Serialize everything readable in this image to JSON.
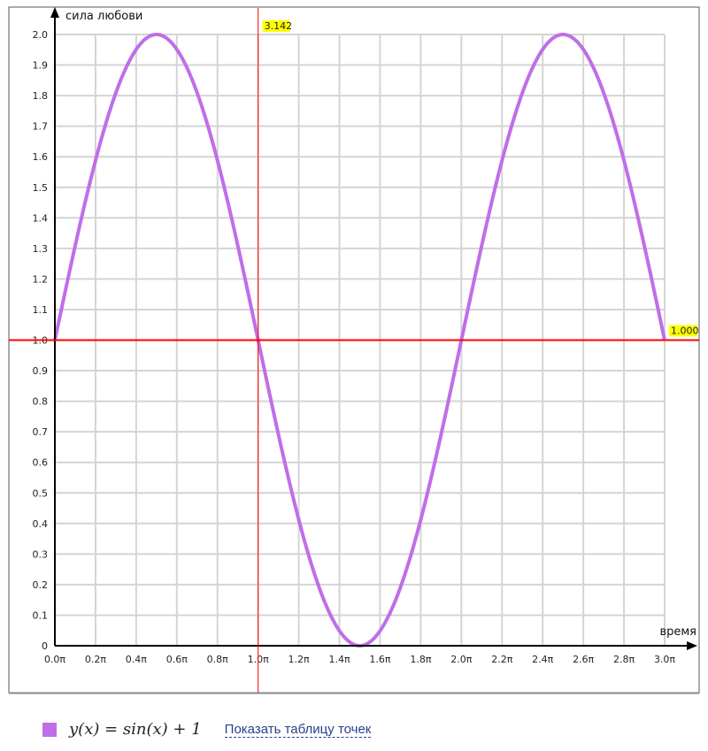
{
  "chart_data": {
    "type": "line",
    "xlabel": "время",
    "ylabel": "сила любови",
    "xlim_pi": [
      0,
      3
    ],
    "ylim": [
      0,
      2
    ],
    "grid": true,
    "x_ticks": [
      "0.0π",
      "0.2π",
      "0.4π",
      "0.6π",
      "0.8π",
      "1.0π",
      "1.2π",
      "1.4π",
      "1.6π",
      "1.8π",
      "2.0π",
      "2.2π",
      "2.4π",
      "2.6π",
      "2.8π",
      "3.0π"
    ],
    "y_ticks": [
      "0",
      "0.1",
      "0.2",
      "0.3",
      "0.4",
      "0.5",
      "0.6",
      "0.7",
      "0.8",
      "0.9",
      "1.0",
      "1.1",
      "1.2",
      "1.3",
      "1.4",
      "1.5",
      "1.6",
      "1.7",
      "1.8",
      "1.9",
      "2.0"
    ],
    "series": [
      {
        "name": "y(x) = sin(x) + 1",
        "function": "sin(x)+1",
        "color": "#bf6ee8"
      }
    ],
    "crosshair": {
      "x": 3.142,
      "y": 1.0,
      "x_label": "3.142",
      "y_label": "1.000",
      "color": "#ff0000",
      "label_bg": "#ffff00"
    }
  },
  "legend": {
    "formula": "y(x) = sin(x) + 1",
    "show_table_link": "Показать таблицу точек"
  }
}
